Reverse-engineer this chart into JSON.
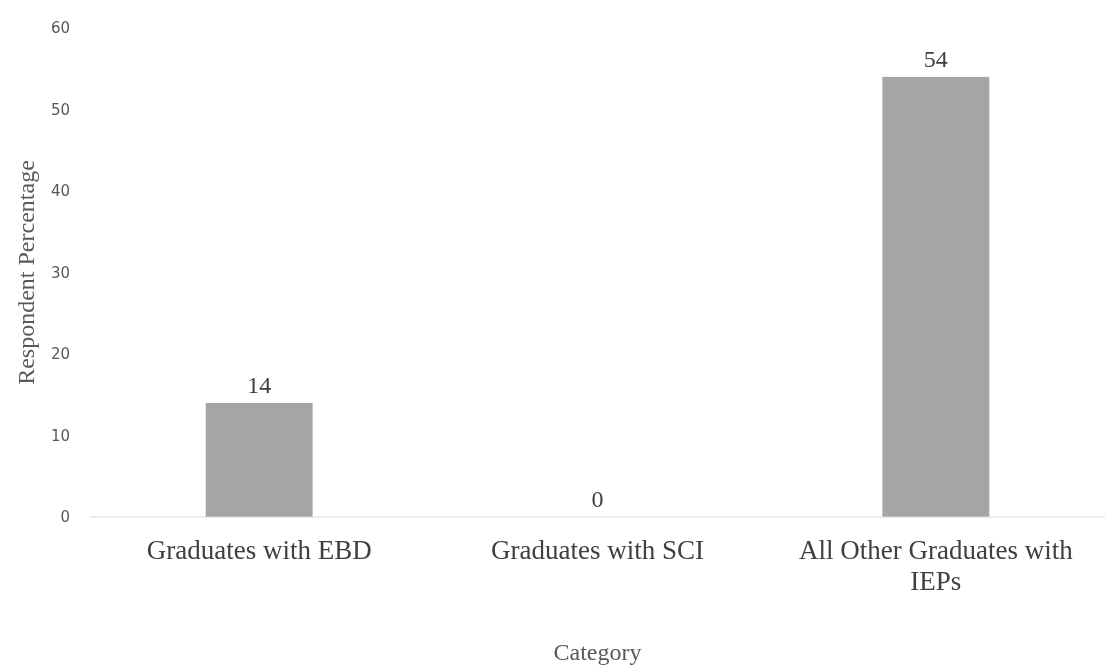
{
  "chart_data": {
    "type": "bar",
    "xlabel": "Category",
    "ylabel": "Respondent Percentage",
    "categories": [
      "Graduates with EBD",
      "Graduates with SCI",
      "All Other Graduates with IEPs"
    ],
    "values": [
      14,
      0,
      54
    ],
    "color": "#a5a5a5",
    "ylim": [
      0,
      60
    ],
    "yticks": [
      0,
      10,
      20,
      30,
      40,
      50,
      60
    ],
    "grid": false,
    "data_labels": true
  }
}
